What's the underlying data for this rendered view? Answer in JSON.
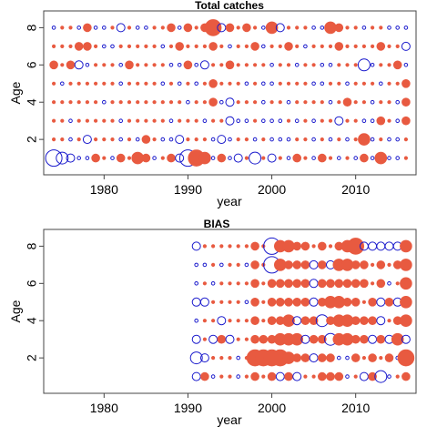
{
  "colors": {
    "positive": "#e85a40",
    "negative": "#1a1acc",
    "frame": "#444444"
  },
  "chart_data": [
    {
      "type": "scatter",
      "title": "Total catches",
      "xlabel": "year",
      "ylabel": "Age",
      "x_ticks": [
        1980,
        1990,
        2000,
        2010
      ],
      "y_ticks": [
        2,
        4,
        6,
        8
      ],
      "xlim": [
        1972.8,
        2017.2
      ],
      "ylim": [
        0.1,
        8.9
      ],
      "years": [
        1974,
        1975,
        1976,
        1977,
        1978,
        1979,
        1980,
        1981,
        1982,
        1983,
        1984,
        1985,
        1986,
        1987,
        1988,
        1989,
        1990,
        1991,
        1992,
        1993,
        1994,
        1995,
        1996,
        1997,
        1998,
        1999,
        2000,
        2001,
        2002,
        2003,
        2004,
        2005,
        2006,
        2007,
        2008,
        2009,
        2010,
        2011,
        2012,
        2013,
        2014,
        2015,
        2016
      ],
      "ages": [
        1,
        2,
        3,
        4,
        5,
        6,
        7,
        8
      ],
      "residuals": {
        "1": [
          -4,
          -3,
          -2,
          -1,
          -1,
          2,
          1,
          -1,
          2,
          1,
          3,
          2,
          -1,
          1,
          2,
          -2,
          -4,
          4,
          3,
          -1,
          2,
          -1,
          -2,
          1,
          -3,
          1,
          -2,
          1,
          -1,
          2,
          1,
          -1,
          2,
          1,
          -1,
          1,
          -1,
          2,
          -1,
          3,
          -1,
          -1,
          1
        ],
        "2": [
          1,
          1,
          -1,
          1,
          -2,
          1,
          1,
          1,
          -1,
          1,
          -1,
          2,
          1,
          -1,
          -1,
          -2,
          1,
          1,
          1,
          -1,
          -2,
          -1,
          1,
          1,
          -1,
          1,
          -1,
          -1,
          -1,
          1,
          1,
          -1,
          1,
          -1,
          1,
          -1,
          1,
          3,
          -1,
          1,
          -1,
          -1,
          1
        ],
        "3": [
          1,
          1,
          -1,
          1,
          1,
          1,
          1,
          1,
          -1,
          1,
          1,
          1,
          1,
          1,
          -1,
          1,
          1,
          1,
          -1,
          1,
          1,
          -2,
          -1,
          -1,
          1,
          -1,
          -1,
          -1,
          1,
          -1,
          1,
          -1,
          1,
          1,
          -2,
          1,
          1,
          -1,
          -1,
          2,
          1,
          -1,
          2
        ],
        "4": [
          1,
          1,
          1,
          1,
          1,
          1,
          -1,
          1,
          1,
          1,
          1,
          1,
          1,
          1,
          1,
          1,
          -1,
          1,
          1,
          2,
          -1,
          -2,
          1,
          1,
          1,
          -1,
          1,
          1,
          -1,
          1,
          1,
          1,
          1,
          -1,
          1,
          2,
          1,
          1,
          -1,
          1,
          1,
          -1,
          2
        ],
        "5": [
          1,
          -1,
          1,
          1,
          1,
          1,
          1,
          1,
          -1,
          1,
          1,
          1,
          1,
          -1,
          1,
          -1,
          1,
          -1,
          1,
          2,
          1,
          1,
          1,
          -1,
          1,
          -1,
          -1,
          1,
          1,
          1,
          1,
          -1,
          -1,
          1,
          1,
          -1,
          1,
          1,
          1,
          -1,
          1,
          1,
          2
        ],
        "6": [
          2,
          1,
          2,
          -2,
          -1,
          1,
          1,
          1,
          -1,
          2,
          1,
          1,
          1,
          1,
          -1,
          -1,
          2,
          -1,
          -2,
          1,
          1,
          2,
          1,
          1,
          1,
          1,
          -1,
          1,
          1,
          -1,
          1,
          1,
          -1,
          -1,
          1,
          1,
          1,
          -3,
          -1,
          1,
          1,
          2,
          -1
        ],
        "7": [
          1,
          1,
          1,
          2,
          2,
          1,
          -1,
          -1,
          1,
          1,
          1,
          1,
          1,
          -1,
          1,
          2,
          1,
          1,
          1,
          2,
          1,
          -1,
          1,
          1,
          2,
          -1,
          1,
          1,
          2,
          1,
          -1,
          1,
          1,
          1,
          2,
          1,
          1,
          1,
          1,
          2,
          1,
          1,
          -2
        ],
        "8": [
          -1,
          1,
          1,
          -1,
          2,
          -1,
          -1,
          1,
          -2,
          1,
          -1,
          -1,
          1,
          1,
          2,
          -1,
          2,
          1,
          2,
          4,
          -2,
          2,
          1,
          2,
          1,
          -1,
          3,
          -2,
          1,
          1,
          1,
          -1,
          -1,
          3,
          2,
          1,
          1,
          -1,
          1,
          1,
          -1,
          -1,
          -1
        ]
      }
    },
    {
      "type": "scatter",
      "title": "BIAS",
      "xlabel": "year",
      "ylabel": "Age",
      "x_ticks": [
        1980,
        1990,
        2000,
        2010
      ],
      "y_ticks": [
        2,
        4,
        6,
        8
      ],
      "xlim": [
        1972.8,
        2017.2
      ],
      "ylim": [
        0.1,
        8.9
      ],
      "years": [
        1991,
        1992,
        1993,
        1994,
        1995,
        1996,
        1997,
        1998,
        1999,
        2000,
        2001,
        2002,
        2003,
        2004,
        2005,
        2006,
        2007,
        2008,
        2009,
        2010,
        2011,
        2012,
        2013,
        2014,
        2015,
        2016
      ],
      "ages": [
        1,
        2,
        3,
        4,
        5,
        6,
        7,
        8
      ],
      "residuals": {
        "1": [
          -2,
          2,
          -1,
          1,
          1,
          -1,
          1,
          2,
          1,
          2,
          -2,
          2,
          -2,
          1,
          1,
          2,
          2,
          2,
          -1,
          1,
          -2,
          2,
          -3,
          -1,
          1,
          2
        ],
        "2": [
          -3,
          -2,
          1,
          1,
          1,
          -1,
          1,
          4,
          4,
          4,
          4,
          3,
          2,
          2,
          -2,
          2,
          2,
          -1,
          -1,
          2,
          1,
          2,
          1,
          2,
          -1,
          4
        ],
        "3": [
          -2,
          1,
          -2,
          2,
          -2,
          1,
          1,
          2,
          2,
          2,
          3,
          3,
          3,
          -2,
          2,
          2,
          -3,
          3,
          3,
          2,
          2,
          -2,
          2,
          -2,
          3,
          -2
        ],
        "4": [
          -1,
          1,
          1,
          -2,
          1,
          1,
          1,
          2,
          1,
          2,
          2,
          3,
          -2,
          2,
          2,
          -3,
          2,
          3,
          3,
          2,
          2,
          2,
          -2,
          1,
          2,
          3
        ],
        "5": [
          -2,
          -2,
          1,
          1,
          1,
          1,
          -1,
          2,
          1,
          2,
          2,
          2,
          2,
          2,
          -2,
          2,
          3,
          3,
          2,
          2,
          1,
          2,
          -2,
          2,
          -2,
          3
        ],
        "6": [
          -1,
          1,
          -1,
          1,
          1,
          1,
          1,
          2,
          1,
          2,
          2,
          2,
          2,
          2,
          -2,
          2,
          2,
          2,
          2,
          2,
          2,
          1,
          2,
          -1,
          1,
          3
        ],
        "7": [
          -1,
          -1,
          1,
          -1,
          1,
          1,
          -1,
          2,
          1,
          -4,
          3,
          2,
          2,
          2,
          -2,
          2,
          -2,
          3,
          3,
          2,
          2,
          1,
          2,
          1,
          2,
          3
        ],
        "8": [
          -2,
          1,
          1,
          1,
          1,
          1,
          1,
          2,
          1,
          -4,
          3,
          3,
          2,
          2,
          1,
          2,
          1,
          2,
          3,
          4,
          -2,
          -2,
          -2,
          -2,
          -2,
          3
        ]
      }
    }
  ]
}
